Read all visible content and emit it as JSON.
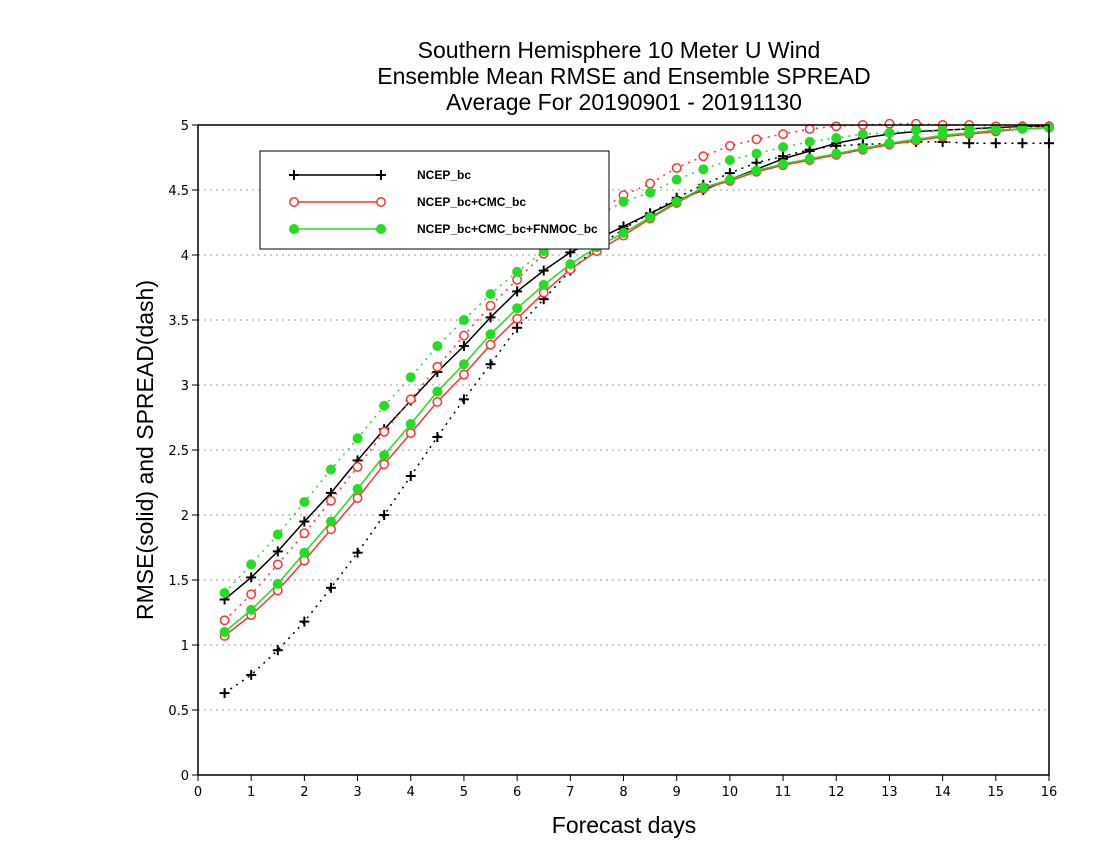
{
  "chart_data": {
    "type": "line",
    "title_lines": [
      "Southern Hemisphere 10 Meter U Wind",
      "Ensemble Mean RMSE and Ensemble SPREAD",
      "Average For 20190901 - 20191130"
    ],
    "xlabel": "Forecast days",
    "ylabel": "RMSE(solid) and SPREAD(dash)",
    "xlim": [
      0,
      16
    ],
    "ylim": [
      0,
      5
    ],
    "xticks": [
      0,
      1,
      2,
      3,
      4,
      5,
      6,
      7,
      8,
      9,
      10,
      11,
      12,
      13,
      14,
      15,
      16
    ],
    "yticks": [
      0,
      0.5,
      1,
      1.5,
      2,
      2.5,
      3,
      3.5,
      4,
      4.5,
      5
    ],
    "grid": "horizontal-dotted",
    "legend_position": "top-left",
    "x": [
      0.5,
      1,
      1.5,
      2,
      2.5,
      3,
      3.5,
      4,
      4.5,
      5,
      5.5,
      6,
      6.5,
      7,
      7.5,
      8,
      8.5,
      9,
      9.5,
      10,
      10.5,
      11,
      11.5,
      12,
      12.5,
      13,
      13.5,
      14,
      14.5,
      15,
      15.5,
      16
    ],
    "series": [
      {
        "name": "NCEP_bc",
        "color": "#000000",
        "marker": "plus",
        "rmse": [
          1.35,
          1.52,
          1.72,
          1.95,
          2.17,
          2.42,
          2.66,
          2.88,
          3.1,
          3.3,
          3.52,
          3.72,
          3.88,
          4.02,
          4.12,
          4.22,
          4.32,
          4.42,
          4.5,
          4.58,
          4.66,
          4.74,
          4.8,
          4.86,
          4.9,
          4.93,
          4.95,
          4.96,
          4.97,
          4.98,
          4.99,
          4.99
        ],
        "spread": [
          0.63,
          0.77,
          0.96,
          1.18,
          1.44,
          1.71,
          2.0,
          2.3,
          2.6,
          2.89,
          3.16,
          3.44,
          3.66,
          3.88,
          4.06,
          4.2,
          4.32,
          4.44,
          4.54,
          4.63,
          4.71,
          4.76,
          4.81,
          4.84,
          4.85,
          4.86,
          4.87,
          4.87,
          4.86,
          4.86,
          4.86,
          4.86
        ]
      },
      {
        "name": "NCEP_bc+CMC_bc",
        "color": "#ff3333",
        "marker": "open-circle",
        "rmse": [
          1.07,
          1.23,
          1.42,
          1.65,
          1.89,
          2.13,
          2.39,
          2.63,
          2.87,
          3.08,
          3.31,
          3.51,
          3.71,
          3.89,
          4.03,
          4.15,
          4.28,
          4.4,
          4.51,
          4.57,
          4.64,
          4.69,
          4.73,
          4.77,
          4.81,
          4.85,
          4.88,
          4.91,
          4.93,
          4.95,
          4.97,
          4.98
        ],
        "spread": [
          1.19,
          1.39,
          1.62,
          1.86,
          2.11,
          2.37,
          2.64,
          2.89,
          3.14,
          3.38,
          3.61,
          3.81,
          4.01,
          4.18,
          4.33,
          4.46,
          4.55,
          4.67,
          4.76,
          4.84,
          4.89,
          4.93,
          4.97,
          4.99,
          5.0,
          5.01,
          5.01,
          5.0,
          5.0,
          4.99,
          4.99,
          4.99
        ]
      },
      {
        "name": "NCEP_bc+CMC_bc+FNMOC_bc",
        "color": "#22dd22",
        "marker": "filled-circle",
        "rmse": [
          1.1,
          1.27,
          1.47,
          1.71,
          1.95,
          2.2,
          2.46,
          2.7,
          2.95,
          3.16,
          3.39,
          3.59,
          3.77,
          3.93,
          4.06,
          4.17,
          4.29,
          4.41,
          4.52,
          4.58,
          4.65,
          4.7,
          4.74,
          4.78,
          4.82,
          4.86,
          4.89,
          4.92,
          4.94,
          4.96,
          4.97,
          4.98
        ],
        "spread": [
          1.4,
          1.62,
          1.85,
          2.1,
          2.35,
          2.59,
          2.84,
          3.06,
          3.3,
          3.5,
          3.7,
          3.87,
          4.03,
          4.17,
          4.3,
          4.41,
          4.48,
          4.58,
          4.66,
          4.73,
          4.78,
          4.83,
          4.87,
          4.9,
          4.93,
          4.94,
          4.96,
          4.96,
          4.97,
          4.97,
          4.98,
          4.98
        ]
      }
    ]
  }
}
